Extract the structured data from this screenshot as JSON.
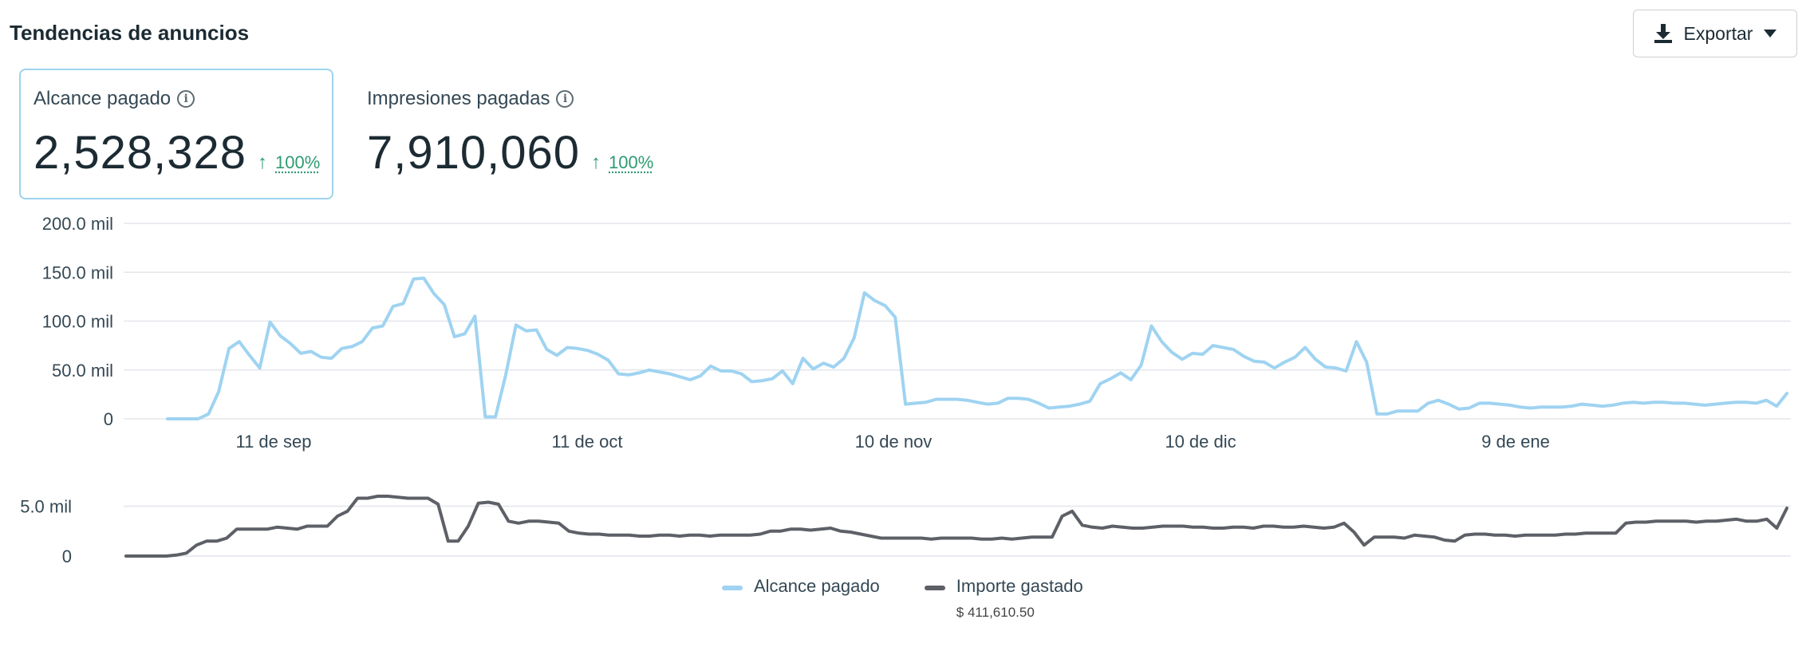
{
  "header": {
    "title": "Tendencias de anuncios",
    "export_label": "Exportar"
  },
  "kpis": [
    {
      "label": "Alcance pagado",
      "value": "2,528,328",
      "change": "100%",
      "selected": true
    },
    {
      "label": "Impresiones pagadas",
      "value": "7,910,060",
      "change": "100%",
      "selected": false
    }
  ],
  "colors": {
    "reach": "#9fd3f1",
    "spend": "#5d6066",
    "grid": "#e4e6eb",
    "selected_border": "#9ed3ee",
    "trend": "#2f9a72"
  },
  "chart_data": [
    {
      "type": "line",
      "name": "top-reach",
      "x_ticks": [
        "11 de sep",
        "11 de oct",
        "10 de nov",
        "10 de dic",
        "9 de ene"
      ],
      "y_ticks": [
        "0",
        "50.0 mil",
        "100.0 mil",
        "150.0 mil",
        "200.0 mil"
      ],
      "ylim": [
        0,
        200000
      ],
      "grid": true,
      "series": [
        {
          "name": "Alcance pagado",
          "color": "#9fd3f1",
          "values": [
            0,
            0,
            0,
            0,
            5000,
            28000,
            72000,
            79000,
            65000,
            52000,
            99000,
            85000,
            77000,
            67000,
            69000,
            63000,
            62000,
            72000,
            74000,
            79000,
            93000,
            95000,
            115000,
            118000,
            143000,
            144000,
            128000,
            117000,
            84000,
            87000,
            105000,
            2000,
            2000,
            45000,
            96000,
            90000,
            91000,
            71000,
            65000,
            73000,
            72000,
            70000,
            66000,
            60000,
            46000,
            45000,
            47000,
            50000,
            48000,
            46000,
            43000,
            40000,
            44000,
            54000,
            49000,
            49000,
            46000,
            38000,
            39000,
            41000,
            49000,
            36000,
            62000,
            51000,
            57000,
            53000,
            62000,
            83000,
            129000,
            121000,
            116000,
            104000,
            15000,
            16000,
            17000,
            20000,
            20000,
            20000,
            19000,
            17000,
            15000,
            16000,
            21000,
            21000,
            20000,
            16000,
            11000,
            12000,
            13000,
            15000,
            18000,
            36000,
            41000,
            47000,
            40000,
            55000,
            95000,
            79000,
            68000,
            61000,
            67000,
            66000,
            75000,
            73000,
            71000,
            64000,
            59000,
            58000,
            52000,
            58000,
            63000,
            73000,
            61000,
            53000,
            52000,
            49000,
            79000,
            58000,
            5000,
            5000,
            8000,
            8000,
            8000,
            16000,
            19000,
            15000,
            10000,
            11000,
            16000,
            16000,
            15000,
            14000,
            12000,
            11000,
            12000,
            12000,
            12000,
            13000,
            15000,
            14000,
            13000,
            14000,
            16000,
            17000,
            16000,
            17000,
            17000,
            16000,
            16000,
            15000,
            14000,
            15000,
            16000,
            17000,
            17000,
            16000,
            19000,
            13000,
            26000
          ]
        }
      ]
    },
    {
      "type": "line",
      "name": "bottom-spend",
      "y_ticks": [
        "0",
        "5.0 mil"
      ],
      "ylim": [
        0,
        6000
      ],
      "grid": true,
      "series": [
        {
          "name": "Importe gastado",
          "color": "#5d6066",
          "total": "$ 411,610.50",
          "values": [
            0,
            0,
            0,
            0,
            0,
            100,
            300,
            1100,
            1500,
            1500,
            1800,
            2700,
            2700,
            2700,
            2700,
            2900,
            2800,
            2700,
            3000,
            3000,
            3000,
            4000,
            4500,
            5800,
            5800,
            6000,
            6000,
            5900,
            5800,
            5800,
            5800,
            5200,
            1500,
            1500,
            3000,
            5300,
            5400,
            5200,
            3500,
            3300,
            3500,
            3500,
            3400,
            3300,
            2500,
            2300,
            2200,
            2200,
            2100,
            2100,
            2100,
            2000,
            2000,
            2100,
            2100,
            2000,
            2100,
            2100,
            2000,
            2100,
            2100,
            2100,
            2100,
            2200,
            2500,
            2500,
            2700,
            2700,
            2600,
            2700,
            2800,
            2500,
            2400,
            2200,
            2000,
            1800,
            1800,
            1800,
            1800,
            1800,
            1700,
            1800,
            1800,
            1800,
            1800,
            1700,
            1700,
            1800,
            1700,
            1800,
            1900,
            1900,
            1900,
            4000,
            4500,
            3100,
            2900,
            2800,
            3000,
            2900,
            2800,
            2800,
            2900,
            3000,
            3000,
            3000,
            2900,
            2900,
            2800,
            2800,
            2900,
            2900,
            2800,
            3000,
            3000,
            2900,
            2900,
            3000,
            2900,
            2800,
            2900,
            3300,
            2400,
            1100,
            1900,
            1900,
            1900,
            1800,
            2100,
            2000,
            1900,
            1600,
            1500,
            2100,
            2200,
            2200,
            2100,
            2100,
            2000,
            2100,
            2100,
            2100,
            2100,
            2200,
            2200,
            2300,
            2300,
            2300,
            2300,
            3300,
            3400,
            3400,
            3500,
            3500,
            3500,
            3500,
            3400,
            3500,
            3500,
            3600,
            3700,
            3500,
            3500,
            3700,
            2800,
            4800
          ]
        }
      ]
    }
  ]
}
